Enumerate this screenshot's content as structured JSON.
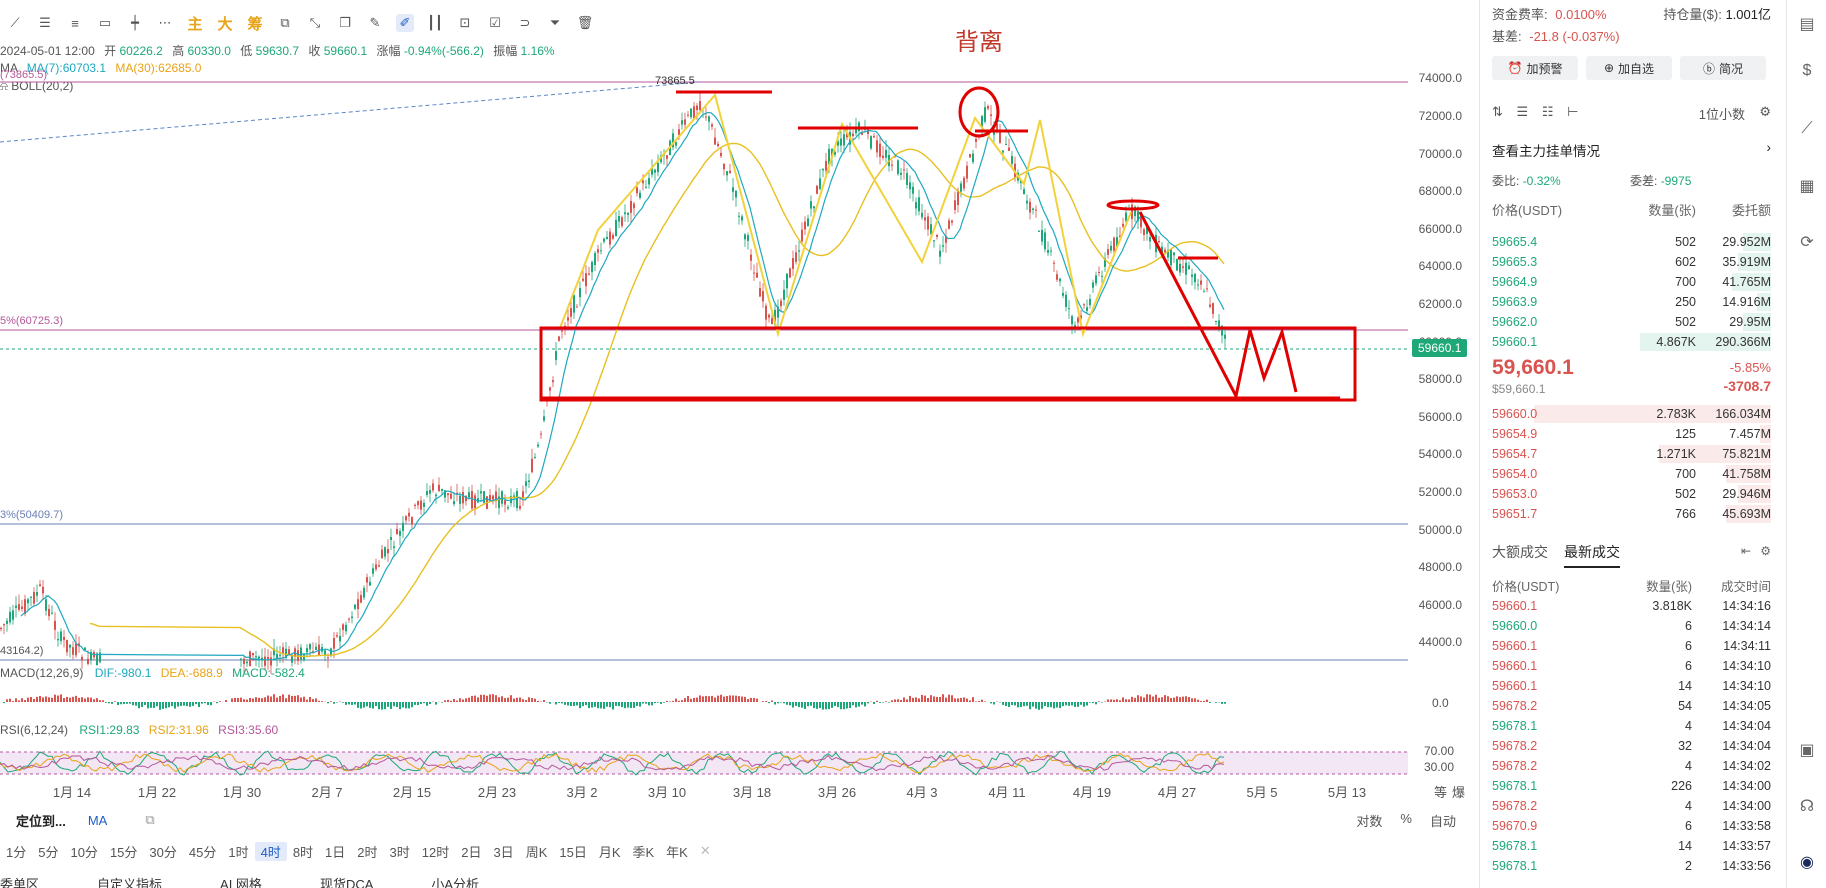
{
  "toolbar": {
    "accent_labels": [
      "主",
      "大",
      "筹"
    ]
  },
  "ohlc": {
    "datetime": "2024-05-01 12:00",
    "open_label": "开",
    "open": "60226.2",
    "high_label": "高",
    "high": "60330.0",
    "low_label": "低",
    "low": "59630.7",
    "close_label": "收",
    "close": "59660.1",
    "change_label": "涨幅",
    "change": "-0.94%(-566.2)",
    "amp_label": "振幅",
    "amp": "1.16%"
  },
  "ma": {
    "name": "MA",
    "ma7": "MA(7):60703.1",
    "ma30": "MA(30):62685.0"
  },
  "boll": {
    "name": "BOLL(20,2)"
  },
  "annotation": {
    "title": "背离"
  },
  "fib": {
    "top_label": "(73865.5)",
    "high_label": "73865.5",
    "mid_label": "5%(60725.3)",
    "low_label": "3%(50409.7)",
    "bottom_label": "43164.2)"
  },
  "price_axis": {
    "ticks": [
      "74000.0",
      "72000.0",
      "70000.0",
      "68000.0",
      "66000.0",
      "64000.0",
      "62000.0",
      "60000.0",
      "58000.0",
      "56000.0",
      "54000.0",
      "52000.0",
      "50000.0",
      "48000.0",
      "46000.0",
      "44000.0"
    ],
    "current": "59660.1"
  },
  "macd": {
    "name": "MACD(12,26,9)",
    "dif": "DIF:-980.1",
    "dea": "DEA:-688.9",
    "macd": "MACD:-582.4",
    "zero": "0.0"
  },
  "rsi": {
    "name": "RSI(6,12,24)",
    "r1": "RSI1:29.83",
    "r2": "RSI2:31.96",
    "r3": "RSI3:35.60",
    "hi": "70.00",
    "lo": "30.00"
  },
  "dates": [
    "1月 14",
    "1月 22",
    "1月 30",
    "2月 7",
    "2月 15",
    "2月 23",
    "3月 2",
    "3月 10",
    "3月 18",
    "3月 26",
    "4月 3",
    "4月 11",
    "4月 19",
    "4月 27",
    "5月 5",
    "5月 13"
  ],
  "axis_modes": {
    "a": "等",
    "b": "爆"
  },
  "bottom": {
    "locate": "定位到...",
    "ma": "MA",
    "log": "对数",
    "pct": "%",
    "auto": "自动"
  },
  "timeframes": [
    "1分",
    "5分",
    "10分",
    "15分",
    "30分",
    "45分",
    "1时",
    "4时",
    "8时",
    "1日",
    "2时",
    "3时",
    "12时",
    "2日",
    "3日",
    "周K",
    "15日",
    "月K",
    "季K",
    "年K"
  ],
  "tabs": [
    "委单区",
    "自定义指标",
    "AI 网格",
    "现货DCA",
    "小A分析"
  ],
  "panel": {
    "funding_label": "资金费率:",
    "funding": "0.0100%",
    "oi_label": "持仓量($):",
    "oi": "1.001亿",
    "basis_label": "基差:",
    "basis": "-21.8 (-0.037%)",
    "btn_alert": "加预警",
    "btn_watch": "加自选",
    "btn_brief": "简况",
    "decimals": "1位小数",
    "order_book_title": "查看主力挂单情况",
    "ratio_label": "委比:",
    "ratio": "-0.32%",
    "diff_label": "委差:",
    "diff": "-9975",
    "col_price": "价格(USDT)",
    "col_qty": "数量(张)",
    "col_amount": "委托额",
    "asks": [
      {
        "price": "59665.4",
        "qty": "502",
        "amt": "29.952M",
        "w": 0.1
      },
      {
        "price": "59665.3",
        "qty": "602",
        "amt": "35.919M",
        "w": 0.12
      },
      {
        "price": "59664.9",
        "qty": "700",
        "amt": "41.765M",
        "w": 0.14
      },
      {
        "price": "59663.9",
        "qty": "250",
        "amt": "14.916M",
        "w": 0.05
      },
      {
        "price": "59662.0",
        "qty": "502",
        "amt": "29.95M",
        "w": 0.1
      },
      {
        "price": "59660.1",
        "qty": "4.867K",
        "amt": "290.366M",
        "w": 0.47
      }
    ],
    "last_price": "59,660.1",
    "last_price_usd": "$59,660.1",
    "pct_change": "-5.85%",
    "abs_change": "-3708.7",
    "bids": [
      {
        "price": "59660.0",
        "qty": "2.783K",
        "amt": "166.034M",
        "w": 0.85
      },
      {
        "price": "59654.9",
        "qty": "125",
        "amt": "7.457M",
        "w": 0.04
      },
      {
        "price": "59654.7",
        "qty": "1.271K",
        "amt": "75.821M",
        "w": 0.4
      },
      {
        "price": "59654.0",
        "qty": "700",
        "amt": "41.758M",
        "w": 0.16
      },
      {
        "price": "59653.0",
        "qty": "502",
        "amt": "29.946M",
        "w": 0.12
      },
      {
        "price": "59651.7",
        "qty": "766",
        "amt": "45.693M",
        "w": 0.16
      }
    ],
    "trade_tabs": [
      "大额成交",
      "最新成交"
    ],
    "trade_cols": {
      "price": "价格(USDT)",
      "qty": "数量(张)",
      "time": "成交时间"
    },
    "trades": [
      {
        "price": "59660.1",
        "qty": "3.818K",
        "time": "14:34:16",
        "side": "red"
      },
      {
        "price": "59660.0",
        "qty": "6",
        "time": "14:34:14",
        "side": "green"
      },
      {
        "price": "59660.1",
        "qty": "6",
        "time": "14:34:11",
        "side": "red"
      },
      {
        "price": "59660.1",
        "qty": "6",
        "time": "14:34:10",
        "side": "red"
      },
      {
        "price": "59660.1",
        "qty": "14",
        "time": "14:34:10",
        "side": "red"
      },
      {
        "price": "59678.2",
        "qty": "54",
        "time": "14:34:05",
        "side": "red"
      },
      {
        "price": "59678.1",
        "qty": "4",
        "time": "14:34:04",
        "side": "green"
      },
      {
        "price": "59678.2",
        "qty": "32",
        "time": "14:34:04",
        "side": "red"
      },
      {
        "price": "59678.2",
        "qty": "4",
        "time": "14:34:02",
        "side": "red"
      },
      {
        "price": "59678.1",
        "qty": "226",
        "time": "14:34:00",
        "side": "green"
      },
      {
        "price": "59678.2",
        "qty": "4",
        "time": "14:34:00",
        "side": "red"
      },
      {
        "price": "59670.9",
        "qty": "6",
        "time": "14:33:58",
        "side": "red"
      },
      {
        "price": "59678.1",
        "qty": "14",
        "time": "14:33:57",
        "side": "green"
      },
      {
        "price": "59678.1",
        "qty": "2",
        "time": "14:33:56",
        "side": "green"
      }
    ]
  },
  "colors": {
    "up": "#1ea878",
    "down": "#d9534f",
    "annotation": "#e00000",
    "ma_short": "#1ea8c0",
    "ma_long": "#e8c020",
    "fib": "#b5579a"
  }
}
